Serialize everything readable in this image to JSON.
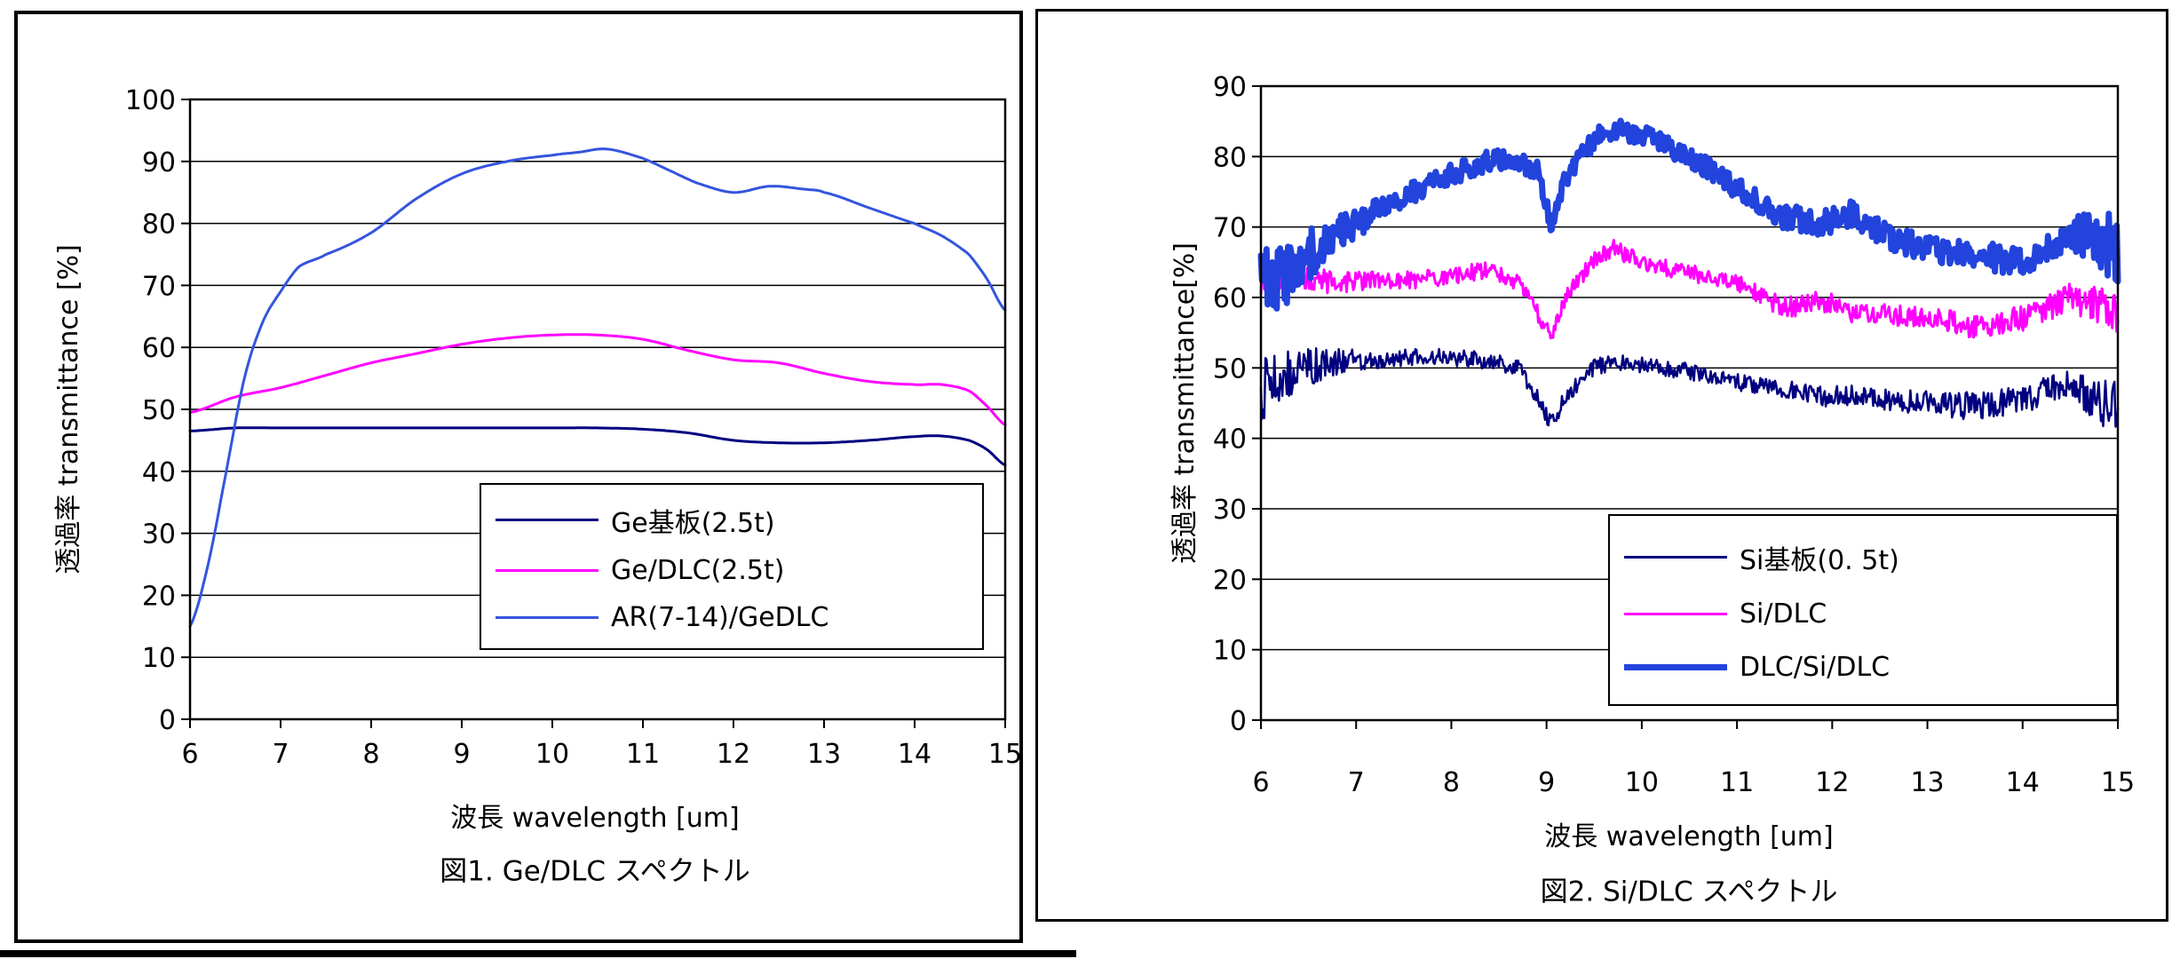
{
  "page": {
    "background": "#ffffff"
  },
  "chart_data": [
    {
      "type": "line",
      "figure": "figure-1",
      "title": "図1. Ge/DLC スペクトル",
      "xlabel": "波長 wavelength [um]",
      "ylabel": "透過率 transmittance [%]",
      "xlim": [
        6,
        15
      ],
      "ylim": [
        0,
        100
      ],
      "xticks": [
        6,
        7,
        8,
        9,
        10,
        11,
        12,
        13,
        14,
        15
      ],
      "ytick_step": 10,
      "grid": "horizontal",
      "legend_position": "inside-lower-right",
      "series": [
        {
          "name": "Ge基板(2.5t)",
          "color": "#000080",
          "width": 3,
          "x": [
            6,
            6.5,
            7,
            7.5,
            8,
            8.5,
            9,
            9.5,
            10,
            10.5,
            11,
            11.5,
            12,
            12.5,
            13,
            13.5,
            14,
            14.3,
            14.6,
            14.8,
            15
          ],
          "values": [
            46.5,
            47,
            47,
            47,
            47,
            47,
            47,
            47,
            47,
            47,
            46.8,
            46.2,
            45,
            44.6,
            44.6,
            45,
            45.6,
            45.7,
            45,
            43.5,
            41
          ]
        },
        {
          "name": "Ge/DLC(2.5t)",
          "color": "#ff00ff",
          "width": 3,
          "x": [
            6,
            6.5,
            7,
            7.5,
            8,
            8.5,
            9,
            9.5,
            10,
            10.5,
            11,
            11.5,
            12,
            12.5,
            13,
            13.5,
            14,
            14.3,
            14.6,
            14.8,
            15
          ],
          "values": [
            49.5,
            52,
            53.5,
            55.5,
            57.5,
            59,
            60.5,
            61.5,
            62,
            62,
            61.3,
            59.5,
            58,
            57.5,
            55.8,
            54.5,
            54,
            54,
            53,
            50.5,
            47.5
          ]
        },
        {
          "name": "AR(7-14)/GeDLC",
          "color": "#3355dd",
          "width": 3,
          "x": [
            6,
            6.2,
            6.4,
            6.6,
            6.8,
            7,
            7.2,
            7.5,
            8,
            8.5,
            9,
            9.5,
            10,
            10.3,
            10.6,
            11,
            11.3,
            11.6,
            12,
            12.4,
            12.8,
            13,
            13.5,
            14,
            14.3,
            14.6,
            14.8,
            15
          ],
          "values": [
            15,
            25,
            40,
            55,
            64,
            69,
            73,
            75,
            78.5,
            84,
            88,
            90,
            91,
            91.5,
            92,
            90.5,
            88.5,
            86.5,
            85,
            86,
            85.5,
            85,
            82.5,
            80,
            78,
            75,
            71,
            66
          ]
        }
      ]
    },
    {
      "type": "line",
      "figure": "figure-2",
      "title": "図2. Si/DLC スペクトル",
      "xlabel": "波長 wavelength [um]",
      "ylabel": "透過率 transmittance[%]",
      "xlim": [
        6,
        15
      ],
      "ylim": [
        0,
        90
      ],
      "xticks": [
        6,
        7,
        8,
        9,
        10,
        11,
        12,
        13,
        14,
        15
      ],
      "ytick_step": 10,
      "grid": "horizontal",
      "legend_position": "inside-lower-right",
      "series": [
        {
          "name": "Si基板(0. 5t)",
          "color": "#000080",
          "width": 2.5,
          "x": [
            6,
            6.4,
            6.8,
            7.2,
            7.6,
            8,
            8.4,
            8.7,
            8.9,
            9.05,
            9.2,
            9.5,
            9.7,
            10,
            10.5,
            11,
            11.5,
            11.9,
            12.2,
            12.6,
            13,
            13.5,
            14,
            14.5,
            15
          ],
          "values": [
            47,
            50,
            51,
            51,
            51.5,
            51.5,
            51,
            50,
            46,
            42,
            46,
            50,
            51,
            50.5,
            49.5,
            48,
            47,
            46,
            46,
            45.5,
            45,
            44.5,
            45.5,
            47.5,
            44
          ],
          "noise": [
            5,
            3,
            2,
            1.2,
            1.2,
            1.2,
            1.2,
            1.2,
            1.2,
            1.2,
            1.2,
            1.2,
            1.2,
            1.2,
            1.2,
            1.2,
            1.2,
            1.5,
            1.5,
            1.5,
            1.8,
            2,
            2,
            2.5,
            4
          ]
        },
        {
          "name": "Si/DLC",
          "color": "#ff00ff",
          "width": 3,
          "x": [
            6,
            6.4,
            6.8,
            7.2,
            7.6,
            8,
            8.4,
            8.7,
            8.9,
            9.05,
            9.2,
            9.5,
            9.7,
            10,
            10.5,
            11,
            11.5,
            11.9,
            12.2,
            12.6,
            13,
            13.5,
            14,
            14.5,
            15
          ],
          "values": [
            62,
            63,
            62,
            62.5,
            62.5,
            63,
            64,
            62,
            58,
            54,
            60,
            65.5,
            67,
            65,
            63.5,
            62,
            58.5,
            59.5,
            58,
            57.5,
            57,
            56,
            57,
            60,
            58
          ],
          "noise": [
            2.5,
            2,
            1.5,
            1.2,
            1.2,
            1.2,
            1.2,
            1.2,
            1.2,
            1.2,
            1.2,
            1.2,
            1.2,
            1.2,
            1.2,
            1.2,
            1.5,
            1.5,
            1.5,
            1.5,
            1.5,
            1.8,
            1.8,
            2,
            3
          ]
        },
        {
          "name": "DLC/Si/DLC",
          "color": "#2244dd",
          "width": 7,
          "x": [
            6,
            6.4,
            6.8,
            7.2,
            7.6,
            8,
            8.4,
            8.7,
            8.9,
            9.05,
            9.2,
            9.5,
            9.7,
            10,
            10.5,
            11,
            11.5,
            11.9,
            12.2,
            12.6,
            13,
            13.5,
            14,
            14.5,
            15
          ],
          "values": [
            61,
            65,
            69,
            72,
            75,
            77.5,
            79.5,
            79.5,
            78,
            70,
            77,
            82.5,
            84,
            83,
            80,
            75.5,
            71.5,
            70.5,
            72,
            68.5,
            67,
            66,
            65,
            69.5,
            67
          ],
          "noise": [
            6,
            4,
            2.5,
            1.8,
            1.5,
            1.5,
            1.5,
            1.5,
            1.5,
            1.5,
            1.5,
            1.5,
            1.5,
            1.5,
            1.5,
            1.5,
            1.8,
            1.8,
            1.8,
            1.8,
            1.8,
            2,
            2.2,
            2.5,
            5
          ]
        }
      ]
    }
  ]
}
